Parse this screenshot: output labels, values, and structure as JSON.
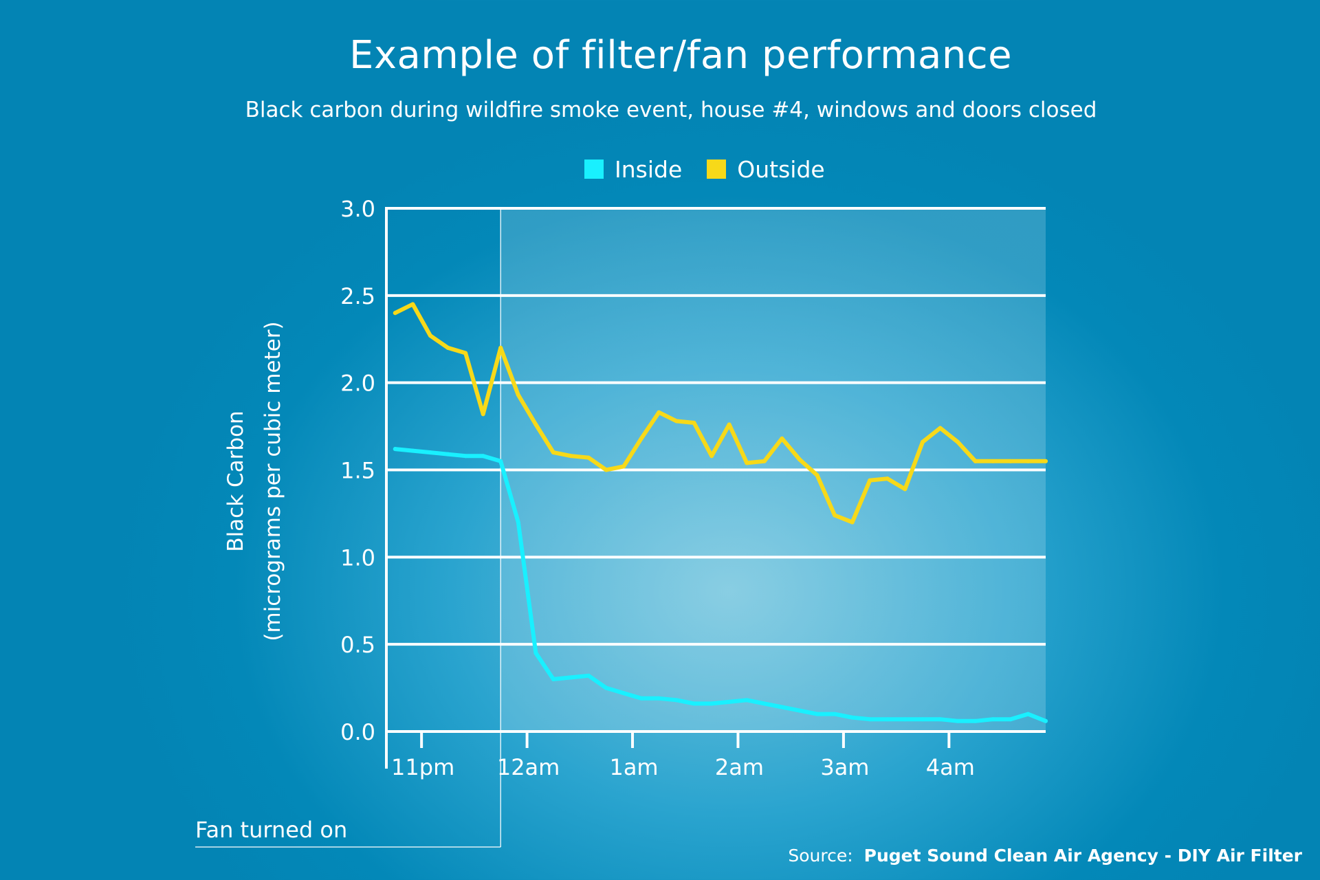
{
  "header": {
    "title": "Example of filter/fan performance",
    "subtitle": "Black carbon during wildfire smoke event, house #4, windows and doors closed"
  },
  "legend": {
    "inside_label": "Inside",
    "outside_label": "Outside"
  },
  "annotation": {
    "fan_label": "Fan turned on"
  },
  "source": {
    "prefix": "Source:",
    "name": "Puget Sound Clean Air Agency - DIY Air Filter"
  },
  "colors": {
    "inside": "#19f0ff",
    "outside": "#f7d919",
    "grid": "#ffffff"
  },
  "chart_data": {
    "type": "line",
    "title": "Example of filter/fan performance",
    "subtitle": "Black carbon during wildfire smoke event, house #4, windows and doors closed",
    "ylabel": [
      "Black Carbon",
      "(micrograms per cubic meter)"
    ],
    "xlabel": "",
    "ylim": [
      0,
      3
    ],
    "yticks": [
      "0.0",
      "0.5",
      "1.0",
      "1.5",
      "2.0",
      "2.5",
      "3.0"
    ],
    "xlim": [
      "10:40pm",
      "4:55am"
    ],
    "xticks": [
      {
        "label": "11pm",
        "time": "11:00pm"
      },
      {
        "label": "12am",
        "time": "12:00am"
      },
      {
        "label": "1am",
        "time": "1:00am"
      },
      {
        "label": "2am",
        "time": "2:00am"
      },
      {
        "label": "3am",
        "time": "3:00am"
      },
      {
        "label": "4am",
        "time": "4:00am"
      }
    ],
    "grid": true,
    "legend_position": "top",
    "fan_turned_on": "11:45pm",
    "x": [
      "10:45pm",
      "10:55pm",
      "11:05pm",
      "11:15pm",
      "11:25pm",
      "11:35pm",
      "11:45pm",
      "11:55pm",
      "12:05am",
      "12:15am",
      "12:25am",
      "12:35am",
      "12:45am",
      "12:55am",
      "1:05am",
      "1:15am",
      "1:25am",
      "1:35am",
      "1:45am",
      "1:55am",
      "2:05am",
      "2:15am",
      "2:25am",
      "2:35am",
      "2:45am",
      "2:55am",
      "3:05am",
      "3:15am",
      "3:25am",
      "3:35am",
      "3:45am",
      "3:55am",
      "4:05am",
      "4:15am",
      "4:25am",
      "4:35am",
      "4:45am",
      "4:55am"
    ],
    "series": [
      {
        "name": "Inside",
        "values": [
          1.62,
          1.61,
          1.6,
          1.59,
          1.58,
          1.58,
          1.55,
          1.2,
          0.45,
          0.3,
          0.31,
          0.32,
          0.25,
          0.22,
          0.19,
          0.19,
          0.18,
          0.16,
          0.16,
          0.17,
          0.18,
          0.16,
          0.14,
          0.12,
          0.1,
          0.1,
          0.08,
          0.07,
          0.07,
          0.07,
          0.07,
          0.07,
          0.06,
          0.06,
          0.07,
          0.07,
          0.1,
          0.06
        ]
      },
      {
        "name": "Outside",
        "values": [
          2.4,
          2.45,
          2.27,
          2.2,
          2.17,
          1.82,
          2.2,
          1.93,
          1.76,
          1.6,
          1.58,
          1.57,
          1.5,
          1.52,
          1.68,
          1.83,
          1.78,
          1.77,
          1.58,
          1.76,
          1.54,
          1.55,
          1.68,
          1.56,
          1.47,
          1.24,
          1.2,
          1.44,
          1.45,
          1.39,
          1.66,
          1.74,
          1.66,
          1.55,
          1.55,
          1.55,
          1.55,
          1.55
        ]
      }
    ]
  }
}
